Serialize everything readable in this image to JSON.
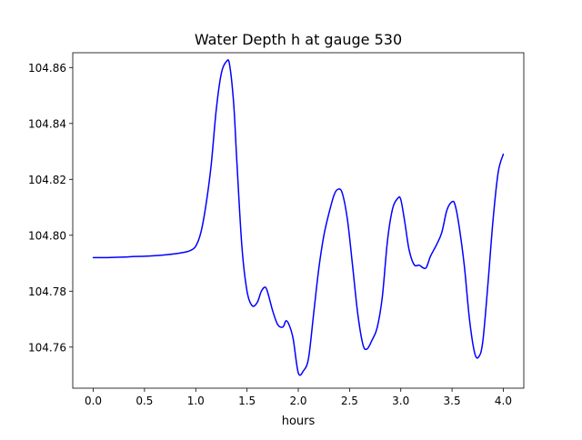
{
  "chart_data": {
    "type": "line",
    "title": "Water Depth h at gauge 530",
    "xlabel": "hours",
    "ylabel": "",
    "xlim": [
      -0.2,
      4.2
    ],
    "ylim": [
      104.7453,
      104.8653
    ],
    "xticks": [
      0.0,
      0.5,
      1.0,
      1.5,
      2.0,
      2.5,
      3.0,
      3.5,
      4.0
    ],
    "xtick_labels": [
      "0.0",
      "0.5",
      "1.0",
      "1.5",
      "2.0",
      "2.5",
      "3.0",
      "3.5",
      "4.0"
    ],
    "yticks": [
      104.76,
      104.78,
      104.8,
      104.82,
      104.84,
      104.86
    ],
    "ytick_labels": [
      "104.76",
      "104.78",
      "104.80",
      "104.82",
      "104.84",
      "104.86"
    ],
    "grid": false,
    "series": [
      {
        "color": "#0000ff",
        "x": [
          0.0,
          0.1,
          0.2,
          0.3,
          0.4,
          0.5,
          0.6,
          0.7,
          0.8,
          0.9,
          0.95,
          1.0,
          1.05,
          1.1,
          1.15,
          1.2,
          1.25,
          1.3,
          1.33,
          1.37,
          1.4,
          1.45,
          1.5,
          1.55,
          1.6,
          1.64,
          1.68,
          1.71,
          1.75,
          1.8,
          1.85,
          1.88,
          1.91,
          1.95,
          2.0,
          2.05,
          2.1,
          2.15,
          2.2,
          2.25,
          2.3,
          2.35,
          2.39,
          2.43,
          2.48,
          2.53,
          2.58,
          2.63,
          2.67,
          2.72,
          2.77,
          2.82,
          2.87,
          2.92,
          2.97,
          3.0,
          3.04,
          3.08,
          3.13,
          3.18,
          3.22,
          3.25,
          3.29,
          3.35,
          3.4,
          3.45,
          3.5,
          3.53,
          3.57,
          3.62,
          3.67,
          3.72,
          3.76,
          3.8,
          3.85,
          3.9,
          3.95,
          4.0
        ],
        "y": [
          104.792,
          104.792,
          104.7921,
          104.7922,
          104.7924,
          104.7925,
          104.7927,
          104.793,
          104.7934,
          104.794,
          104.7946,
          104.7961,
          104.801,
          104.811,
          104.825,
          104.845,
          104.858,
          104.8622,
          104.861,
          104.847,
          104.827,
          104.796,
          104.78,
          104.7748,
          104.776,
          104.78,
          104.7814,
          104.7785,
          104.773,
          104.768,
          104.7672,
          104.7694,
          104.768,
          104.763,
          104.7508,
          104.7515,
          104.756,
          104.772,
          104.788,
          104.8,
          104.808,
          104.8145,
          104.8165,
          104.815,
          104.8055,
          104.789,
          104.772,
          104.761,
          104.7593,
          104.7625,
          104.767,
          104.778,
          104.798,
          104.8095,
          104.8132,
          104.8128,
          104.8045,
          104.795,
          104.7895,
          104.7893,
          104.7883,
          104.7885,
          104.7925,
          104.7967,
          104.801,
          104.809,
          104.812,
          104.8108,
          104.803,
          104.789,
          104.77,
          104.758,
          104.7565,
          104.762,
          104.7825,
          104.8055,
          104.8225,
          104.829
        ]
      }
    ]
  }
}
